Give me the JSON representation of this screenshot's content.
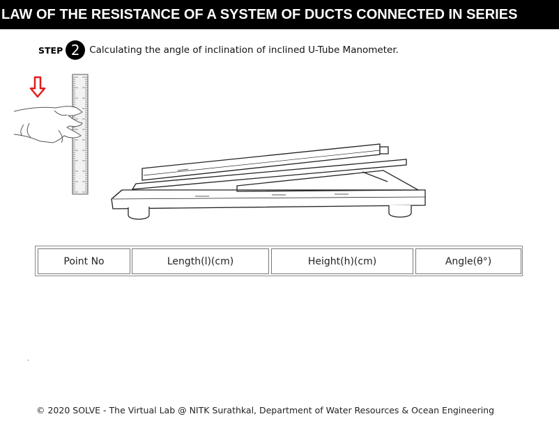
{
  "header": {
    "title": "LAW OF THE RESISTANCE OF A SYSTEM OF DUCTS CONNECTED IN SERIES"
  },
  "step": {
    "label": "STEP",
    "number": "2",
    "description": "Calculating the angle of inclination of inclined U-Tube Manometer."
  },
  "colors": {
    "header_bg": "#000000",
    "arrow": "#e31b1b"
  },
  "table": {
    "headers": [
      "Point No",
      "Length(l)(cm)",
      "Height(h)(cm)",
      "Angle(θ°)"
    ]
  },
  "footer": {
    "text": "© 2020 SOLVE - The Virtual Lab @ NITK Surathkal, Department of Water Resources & Ocean Engineering"
  }
}
